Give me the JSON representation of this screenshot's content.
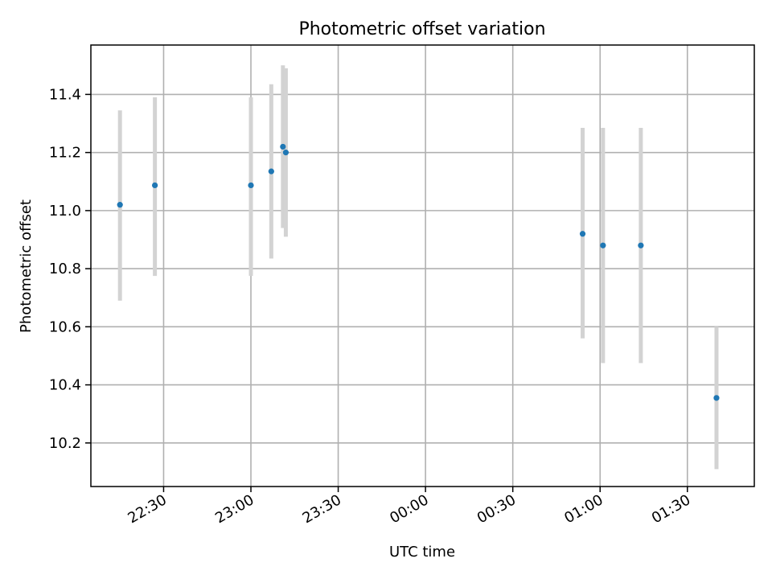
{
  "chart_data": {
    "type": "scatter",
    "title": "Photometric offset variation",
    "xlabel": "UTC time",
    "ylabel": "Photometric offset",
    "x_axis_type": "time",
    "xlim": [
      "22:05",
      "01:53"
    ],
    "ylim": [
      10.05,
      11.57
    ],
    "grid": true,
    "x_ticks": [
      "22:30",
      "23:00",
      "23:30",
      "00:00",
      "00:30",
      "01:00",
      "01:30"
    ],
    "y_ticks": [
      "10.2",
      "10.4",
      "10.6",
      "10.8",
      "11.0",
      "11.2",
      "11.4"
    ],
    "colors": {
      "marker": "#1f77b4",
      "errorbar": "#d3d3d3"
    },
    "points": [
      {
        "x": "22:15",
        "y": 11.02,
        "ylow": 10.69,
        "yhigh": 11.345
      },
      {
        "x": "22:27",
        "y": 11.087,
        "ylow": 10.775,
        "yhigh": 11.39
      },
      {
        "x": "23:00",
        "y": 11.087,
        "ylow": 10.775,
        "yhigh": 11.39
      },
      {
        "x": "23:07",
        "y": 11.135,
        "ylow": 10.835,
        "yhigh": 11.435
      },
      {
        "x": "23:11",
        "y": 11.22,
        "ylow": 10.94,
        "yhigh": 11.5
      },
      {
        "x": "23:12",
        "y": 11.2,
        "ylow": 10.91,
        "yhigh": 11.49
      },
      {
        "x": "00:54",
        "y": 10.92,
        "ylow": 10.56,
        "yhigh": 11.285
      },
      {
        "x": "01:01",
        "y": 10.88,
        "ylow": 10.475,
        "yhigh": 11.285
      },
      {
        "x": "01:14",
        "y": 10.88,
        "ylow": 10.475,
        "yhigh": 11.285
      },
      {
        "x": "01:40",
        "y": 10.355,
        "ylow": 10.11,
        "yhigh": 10.6
      }
    ]
  }
}
